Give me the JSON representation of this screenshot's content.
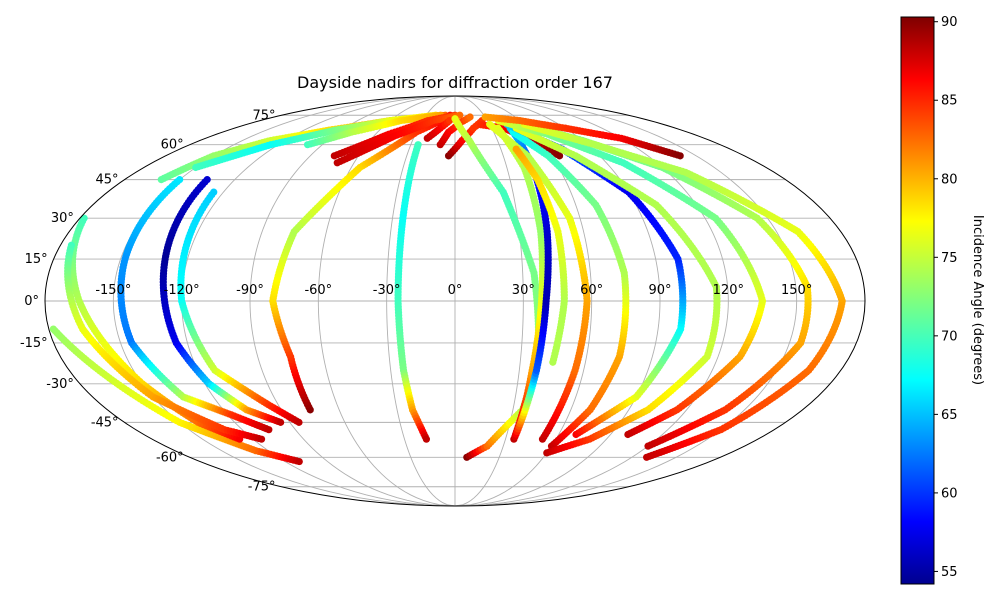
{
  "chart_data": {
    "type": "scatter",
    "projection": "mollweide",
    "title": "Dayside nadirs for diffraction order 167",
    "x_tick_labels": [
      "-150°",
      "-120°",
      "-90°",
      "-60°",
      "-30°",
      "0°",
      "30°",
      "60°",
      "90°",
      "120°",
      "150°"
    ],
    "x_tick_values": [
      -150,
      -120,
      -90,
      -60,
      -30,
      0,
      30,
      60,
      90,
      120,
      150
    ],
    "y_tick_labels": [
      "-75°",
      "-60°",
      "-45°",
      "-30°",
      "-15°",
      "0°",
      "15°",
      "30°",
      "45°",
      "60°",
      "75°"
    ],
    "y_tick_values": [
      -75,
      -60,
      -45,
      -30,
      -15,
      0,
      15,
      30,
      45,
      60,
      75
    ],
    "grid": true,
    "colorbar": {
      "label": "Incidence Angle (degrees)",
      "range": [
        54.2,
        90.3
      ],
      "ticks": [
        55,
        60,
        65,
        70,
        75,
        80,
        85,
        90
      ],
      "tick_labels": [
        "55",
        "60",
        "65",
        "70",
        "75",
        "80",
        "85",
        "90"
      ],
      "colormap": "jet"
    },
    "tracks": [
      {
        "points": [
          [
            -178,
            -10,
            73
          ],
          [
            -150,
            -45,
            77
          ],
          [
            -128,
            -57,
            82
          ],
          [
            -110,
            -62,
            88
          ]
        ]
      },
      {
        "points": [
          [
            -178,
            30,
            70
          ],
          [
            -165,
            0,
            74
          ],
          [
            -150,
            -30,
            78
          ],
          [
            -140,
            -45,
            82
          ],
          [
            -128,
            -52,
            86
          ]
        ]
      },
      {
        "points": [
          [
            -175,
            20,
            70
          ],
          [
            -165,
            -10,
            76
          ],
          [
            -150,
            -35,
            80
          ],
          [
            -130,
            -48,
            84
          ],
          [
            -115,
            -52,
            88
          ]
        ]
      },
      {
        "points": [
          [
            -150,
            45,
            67
          ],
          [
            -148,
            15,
            64
          ],
          [
            -145,
            -15,
            63
          ],
          [
            -135,
            -35,
            74
          ],
          [
            -118,
            -42,
            84
          ],
          [
            -105,
            -48,
            88
          ]
        ]
      },
      {
        "points": [
          [
            -135,
            45,
            57
          ],
          [
            -130,
            15,
            55
          ],
          [
            -125,
            -15,
            58
          ],
          [
            -118,
            -30,
            66
          ],
          [
            -108,
            -40,
            80
          ],
          [
            -95,
            -45,
            88
          ]
        ]
      },
      {
        "points": [
          [
            -125,
            40,
            66
          ],
          [
            -120,
            0,
            68
          ],
          [
            -112,
            -25,
            75
          ],
          [
            -95,
            -38,
            84
          ],
          [
            -85,
            -45,
            88
          ]
        ]
      },
      {
        "points": [
          [
            -160,
            45,
            71
          ],
          [
            -150,
            55,
            73
          ],
          [
            -130,
            62,
            75
          ],
          [
            -100,
            67,
            78
          ],
          [
            -60,
            72,
            80
          ],
          [
            -10,
            75,
            82
          ]
        ]
      },
      {
        "points": [
          [
            -150,
            50,
            70
          ],
          [
            -125,
            60,
            68
          ],
          [
            -95,
            67,
            72
          ],
          [
            -60,
            72,
            76
          ],
          [
            -20,
            75,
            78
          ]
        ]
      },
      {
        "points": [
          [
            -100,
            60,
            70
          ],
          [
            -80,
            66,
            74
          ],
          [
            -50,
            72,
            78
          ],
          [
            -15,
            75,
            80
          ]
        ]
      },
      {
        "points": [
          [
            -75,
            -40,
            90
          ],
          [
            -75,
            -20,
            84
          ],
          [
            -80,
            0,
            78
          ],
          [
            -75,
            25,
            74
          ],
          [
            -55,
            50,
            78
          ],
          [
            -30,
            66,
            84
          ],
          [
            -5,
            75,
            86
          ]
        ]
      },
      {
        "points": [
          [
            -75,
            55,
            88
          ],
          [
            -50,
            65,
            86
          ],
          [
            -25,
            72,
            84
          ],
          [
            0,
            75,
            84
          ]
        ]
      },
      {
        "points": [
          [
            -70,
            52,
            88
          ],
          [
            -45,
            64,
            86
          ],
          [
            -20,
            72,
            84
          ],
          [
            5,
            75,
            82
          ]
        ]
      },
      {
        "points": [
          [
            -25,
            60,
            70
          ],
          [
            -25,
            30,
            68
          ],
          [
            -25,
            0,
            70
          ],
          [
            -24,
            -25,
            72
          ],
          [
            -22,
            -40,
            80
          ],
          [
            -17,
            -52,
            88
          ]
        ]
      },
      {
        "points": [
          [
            -10,
            60,
            88
          ],
          [
            -5,
            66,
            86
          ],
          [
            5,
            71,
            84
          ],
          [
            15,
            74,
            82
          ]
        ]
      },
      {
        "points": [
          [
            -20,
            63,
            88
          ],
          [
            -12,
            68,
            86
          ],
          [
            -5,
            72,
            84
          ]
        ]
      },
      {
        "points": [
          [
            -4,
            55,
            90
          ],
          [
            5,
            62,
            86
          ],
          [
            15,
            68,
            84
          ],
          [
            25,
            72,
            84
          ]
        ]
      },
      {
        "points": [
          [
            8,
            -60,
            90
          ],
          [
            20,
            -55,
            82
          ],
          [
            35,
            -40,
            74
          ],
          [
            38,
            -20,
            73
          ],
          [
            35,
            10,
            72
          ],
          [
            25,
            40,
            70
          ],
          [
            10,
            62,
            74
          ],
          [
            0,
            73,
            76
          ]
        ]
      },
      {
        "points": [
          [
            20,
            70,
            84
          ],
          [
            40,
            68,
            86
          ],
          [
            55,
            62,
            88
          ],
          [
            65,
            55,
            90
          ]
        ]
      },
      {
        "points": [
          [
            35,
            -50,
            88
          ],
          [
            36,
            -25,
            80
          ],
          [
            38,
            0,
            76
          ],
          [
            40,
            25,
            73
          ],
          [
            40,
            50,
            74
          ],
          [
            35,
            68,
            76
          ]
        ]
      },
      {
        "points": [
          [
            35,
            -52,
            88
          ],
          [
            38,
            -25,
            62
          ],
          [
            40,
            0,
            56
          ],
          [
            43,
            25,
            57
          ],
          [
            45,
            50,
            60
          ],
          [
            45,
            68,
            66
          ]
        ]
      },
      {
        "points": [
          [
            52,
            -52,
            88
          ],
          [
            56,
            -25,
            82
          ],
          [
            58,
            0,
            80
          ],
          [
            55,
            30,
            76
          ],
          [
            45,
            55,
            74
          ],
          [
            30,
            70,
            76
          ]
        ]
      },
      {
        "points": [
          [
            45,
            -22,
            74
          ],
          [
            48,
            0,
            74
          ],
          [
            48,
            25,
            76
          ],
          [
            45,
            45,
            78
          ],
          [
            40,
            58,
            80
          ]
        ]
      },
      {
        "points": [
          [
            60,
            -55,
            88
          ],
          [
            70,
            -40,
            82
          ],
          [
            75,
            -20,
            80
          ],
          [
            75,
            10,
            74
          ],
          [
            70,
            35,
            72
          ],
          [
            58,
            55,
            70
          ],
          [
            45,
            66,
            68
          ]
        ]
      },
      {
        "points": [
          [
            70,
            -50,
            86
          ],
          [
            90,
            -35,
            76
          ],
          [
            100,
            -10,
            68
          ],
          [
            100,
            15,
            60
          ],
          [
            90,
            40,
            58
          ],
          [
            70,
            58,
            62
          ],
          [
            45,
            70,
            66
          ]
        ]
      },
      {
        "points": [
          [
            60,
            -58,
            88
          ],
          [
            80,
            -52,
            84
          ],
          [
            100,
            -40,
            78
          ],
          [
            115,
            -20,
            75
          ],
          [
            115,
            5,
            74
          ],
          [
            100,
            35,
            74
          ],
          [
            75,
            55,
            74
          ],
          [
            50,
            68,
            76
          ]
        ]
      },
      {
        "points": [
          [
            100,
            -50,
            88
          ],
          [
            115,
            -40,
            84
          ],
          [
            130,
            -20,
            80
          ],
          [
            135,
            0,
            76
          ],
          [
            125,
            30,
            72
          ],
          [
            100,
            52,
            70
          ],
          [
            70,
            65,
            72
          ],
          [
            40,
            72,
            76
          ]
        ]
      },
      {
        "points": [
          [
            120,
            -55,
            88
          ],
          [
            140,
            -40,
            84
          ],
          [
            155,
            -15,
            80
          ],
          [
            155,
            5,
            78
          ],
          [
            145,
            30,
            74
          ],
          [
            120,
            50,
            72
          ],
          [
            90,
            62,
            72
          ],
          [
            60,
            70,
            74
          ]
        ]
      },
      {
        "points": [
          [
            130,
            -60,
            88
          ],
          [
            150,
            -48,
            84
          ],
          [
            165,
            -25,
            82
          ],
          [
            170,
            0,
            80
          ],
          [
            160,
            25,
            76
          ],
          [
            130,
            48,
            74
          ],
          [
            95,
            60,
            74
          ],
          [
            60,
            70,
            76
          ]
        ]
      },
      {
        "points": [
          [
            30,
            74,
            80
          ],
          [
            60,
            72,
            82
          ],
          [
            90,
            68,
            84
          ],
          [
            120,
            63,
            86
          ],
          [
            140,
            55,
            90
          ]
        ]
      }
    ]
  }
}
